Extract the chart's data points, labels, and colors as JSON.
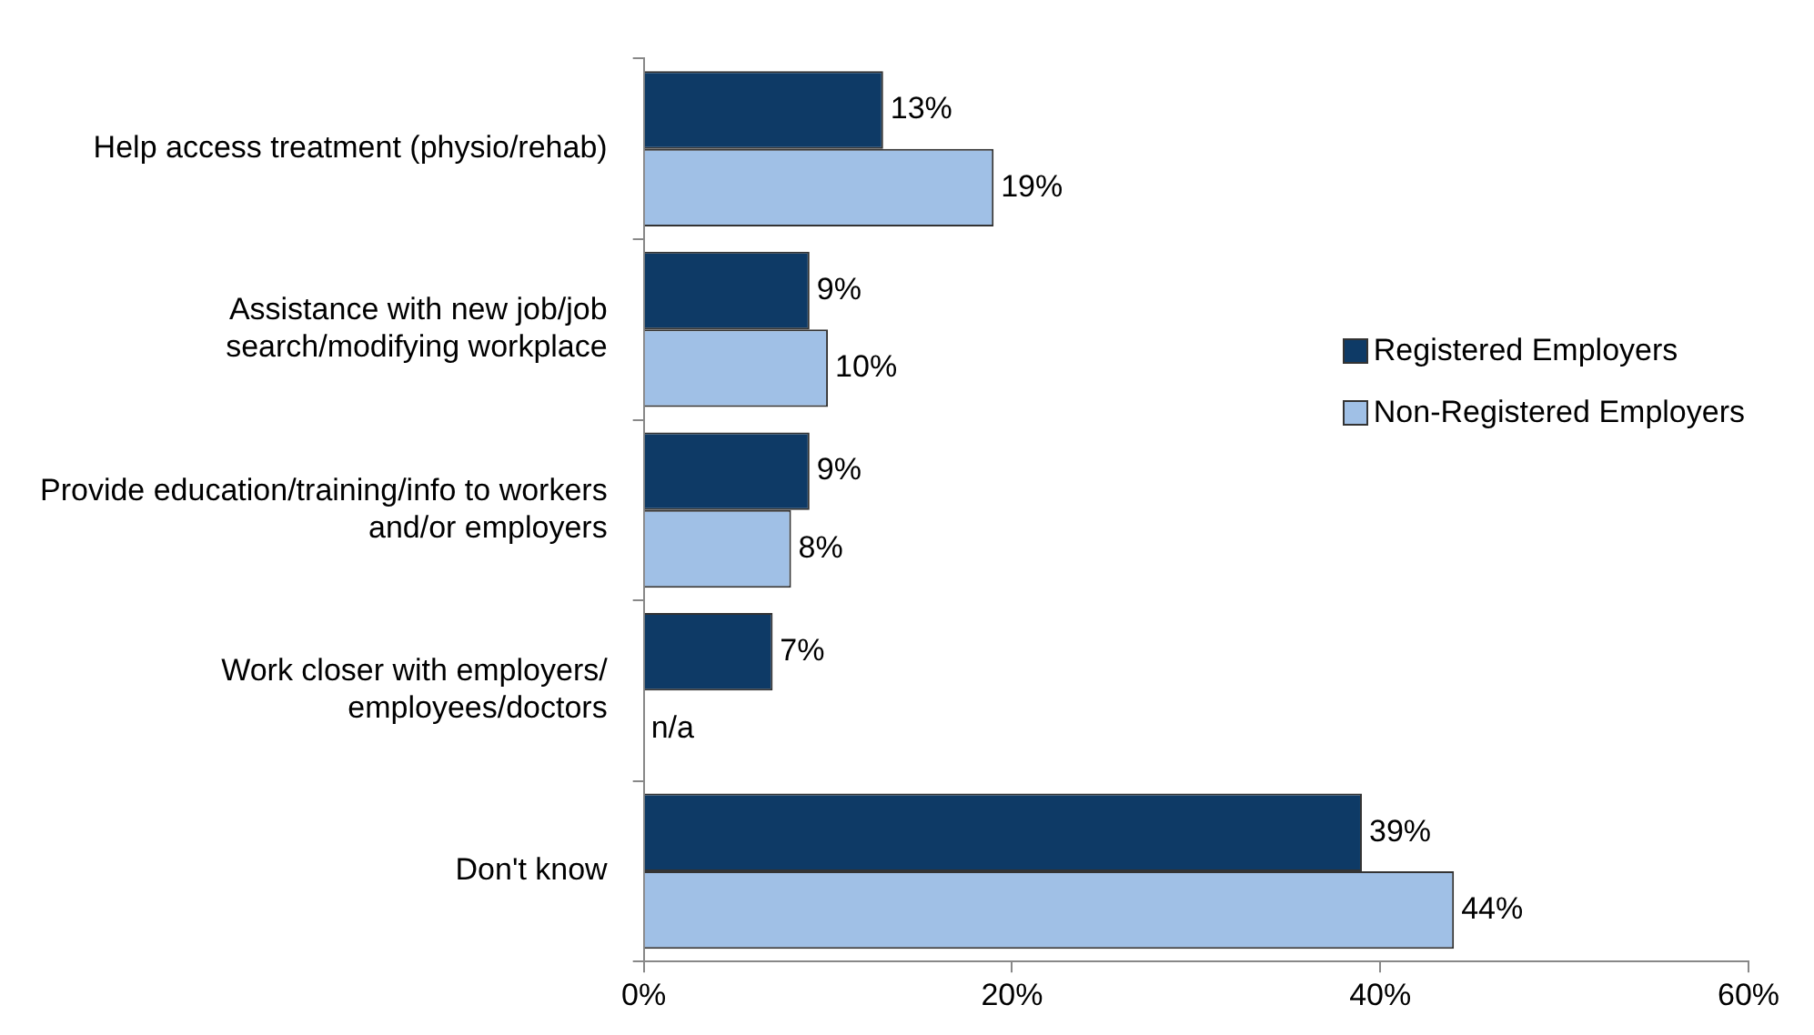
{
  "chart_data": {
    "type": "bar",
    "orientation": "horizontal",
    "categories": [
      "Help access treatment (physio/rehab)",
      "Assistance with new job/job search/modifying workplace",
      "Provide education/training/info to workers and/or employers",
      "Work closer with employers/ employees/doctors",
      "Don't know"
    ],
    "series": [
      {
        "name": "Registered Employers",
        "color": "#0e3a66",
        "values": [
          13,
          9,
          9,
          7,
          39
        ],
        "value_labels": [
          "13%",
          "9%",
          "9%",
          "7%",
          "39%"
        ]
      },
      {
        "name": "Non-Registered Employers",
        "color": "#a0c0e6",
        "values": [
          19,
          10,
          8,
          null,
          44
        ],
        "value_labels": [
          "19%",
          "10%",
          "8%",
          "n/a",
          "44%"
        ]
      }
    ],
    "xlim": [
      0,
      60
    ],
    "xticks": [
      {
        "value": 0,
        "label": "0%"
      },
      {
        "value": 20,
        "label": "20%"
      },
      {
        "value": 40,
        "label": "40%"
      },
      {
        "value": 60,
        "label": "60%"
      }
    ],
    "grid": false,
    "legend": "right"
  }
}
